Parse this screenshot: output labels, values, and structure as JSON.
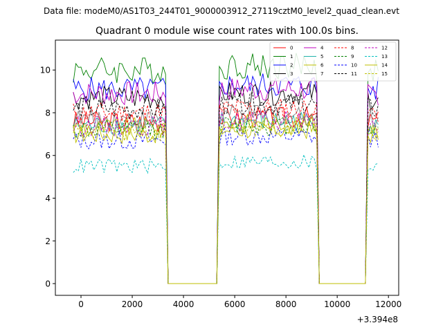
{
  "header_text": "Data file: modeM0/AS1T03_244T01_9000003912_27119cztM0_level2_quad_clean.evt",
  "chart_data": {
    "type": "line",
    "title": "Quadrant 0 module wise count rates with 100.0s bins.",
    "xlabel": "",
    "ylabel": "",
    "x_offset_label": "+3.394e8",
    "xlim": [
      -1000,
      12400
    ],
    "ylim": [
      -0.55,
      11.4
    ],
    "x_ticks": [
      0,
      2000,
      4000,
      6000,
      8000,
      10000,
      12000
    ],
    "x_tick_labels": [
      "0",
      "2000",
      "4000",
      "6000",
      "8000",
      "10000",
      "12000"
    ],
    "y_ticks": [
      0,
      2,
      4,
      6,
      8,
      10
    ],
    "y_tick_labels": [
      "0",
      "2",
      "4",
      "6",
      "8",
      "10"
    ],
    "grid": false,
    "legend_position": "top-right",
    "gaps": [
      [
        3350,
        5350
      ],
      [
        9250,
        11100
      ]
    ],
    "segments": [
      [
        -300,
        3300
      ],
      [
        5400,
        9200
      ],
      [
        11150,
        11600
      ]
    ],
    "series": [
      {
        "name": "0",
        "color": "#ff0000",
        "dash": "solid",
        "mean": 7.6
      },
      {
        "name": "1",
        "color": "#008000",
        "dash": "solid",
        "mean": 10.0
      },
      {
        "name": "2",
        "color": "#0000ff",
        "dash": "solid",
        "mean": 9.1
      },
      {
        "name": "3",
        "color": "#000000",
        "dash": "solid",
        "mean": 8.7
      },
      {
        "name": "4",
        "color": "#bf00bf",
        "dash": "solid",
        "mean": 8.9
      },
      {
        "name": "5",
        "color": "#20b2aa",
        "dash": "solid",
        "mean": 7.4
      },
      {
        "name": "6",
        "color": "#bfbf00",
        "dash": "solid",
        "mean": 7.3
      },
      {
        "name": "7",
        "color": "#808080",
        "dash": "solid",
        "mean": 7.7
      },
      {
        "name": "8",
        "color": "#ff0000",
        "dash": "dashed",
        "mean": 8.0
      },
      {
        "name": "9",
        "color": "#008000",
        "dash": "dashed",
        "mean": 7.2
      },
      {
        "name": "10",
        "color": "#0000ff",
        "dash": "dashed",
        "mean": 6.7
      },
      {
        "name": "11",
        "color": "#000000",
        "dash": "dashed",
        "mean": 8.2
      },
      {
        "name": "12",
        "color": "#bf00bf",
        "dash": "dashed",
        "mean": 7.4
      },
      {
        "name": "13",
        "color": "#00bfbf",
        "dash": "dashed",
        "mean": 5.5
      },
      {
        "name": "14",
        "color": "#bfbf00",
        "dash": "solid",
        "mean": 7.0
      },
      {
        "name": "15",
        "color": "#bfbf00",
        "dash": "dashed",
        "mean": 7.1
      }
    ]
  }
}
